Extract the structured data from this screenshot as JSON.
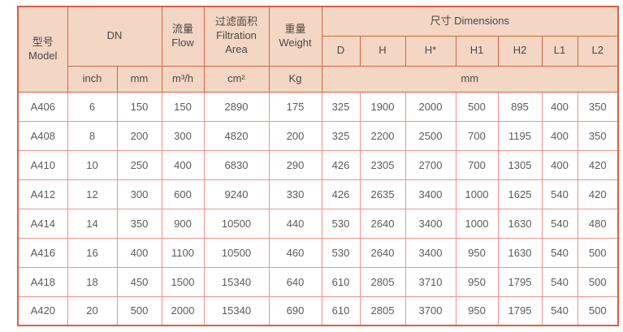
{
  "table": {
    "header": {
      "model": "型号\nModel",
      "dn": "DN",
      "flow": "流量\nFlow",
      "filtration_area": "过滤面积\nFiltration\nArea",
      "weight": "重量\nWeight",
      "dimensions": "尺寸 Dimensions",
      "dim_cols": [
        "D",
        "H",
        "H*",
        "H1",
        "H2",
        "L1",
        "L2"
      ],
      "units": {
        "inch": "inch",
        "mm": "mm",
        "flow": "m³/h",
        "area": "cm²",
        "weight": "Kg",
        "dimensions": "mm"
      }
    },
    "column_keys": [
      "model",
      "dn-inch",
      "dn-mm",
      "flow",
      "filtration-area",
      "weight",
      "d",
      "h",
      "h-star",
      "h1",
      "h2",
      "l1",
      "l2"
    ],
    "rows": [
      [
        "A406",
        "6",
        "150",
        "150",
        "2890",
        "175",
        "325",
        "1900",
        "2000",
        "500",
        "895",
        "400",
        "350"
      ],
      [
        "A408",
        "8",
        "200",
        "300",
        "4820",
        "200",
        "325",
        "2200",
        "2500",
        "700",
        "1195",
        "400",
        "350"
      ],
      [
        "A410",
        "10",
        "250",
        "400",
        "6830",
        "290",
        "426",
        "2305",
        "2700",
        "700",
        "1305",
        "400",
        "420"
      ],
      [
        "A412",
        "12",
        "300",
        "600",
        "9240",
        "330",
        "426",
        "2635",
        "3400",
        "1000",
        "1625",
        "540",
        "420"
      ],
      [
        "A414",
        "14",
        "350",
        "900",
        "10500",
        "440",
        "530",
        "2640",
        "3400",
        "1000",
        "1630",
        "540",
        "480"
      ],
      [
        "A416",
        "16",
        "400",
        "1100",
        "10500",
        "460",
        "530",
        "2640",
        "3400",
        "950",
        "1630",
        "540",
        "500"
      ],
      [
        "A418",
        "18",
        "450",
        "1500",
        "15340",
        "640",
        "610",
        "2805",
        "3710",
        "950",
        "1795",
        "540",
        "500"
      ],
      [
        "A420",
        "20",
        "500",
        "2000",
        "15340",
        "690",
        "610",
        "2805",
        "3700",
        "950",
        "1795",
        "540",
        "500"
      ]
    ],
    "colors": {
      "header_bg": "#f4d6c5",
      "header_border": "#d2663f",
      "outer_border": "#dc5e48",
      "body_border": "#f0938b",
      "header_text": "#4c4843",
      "body_text": "#5b5b5b"
    }
  }
}
